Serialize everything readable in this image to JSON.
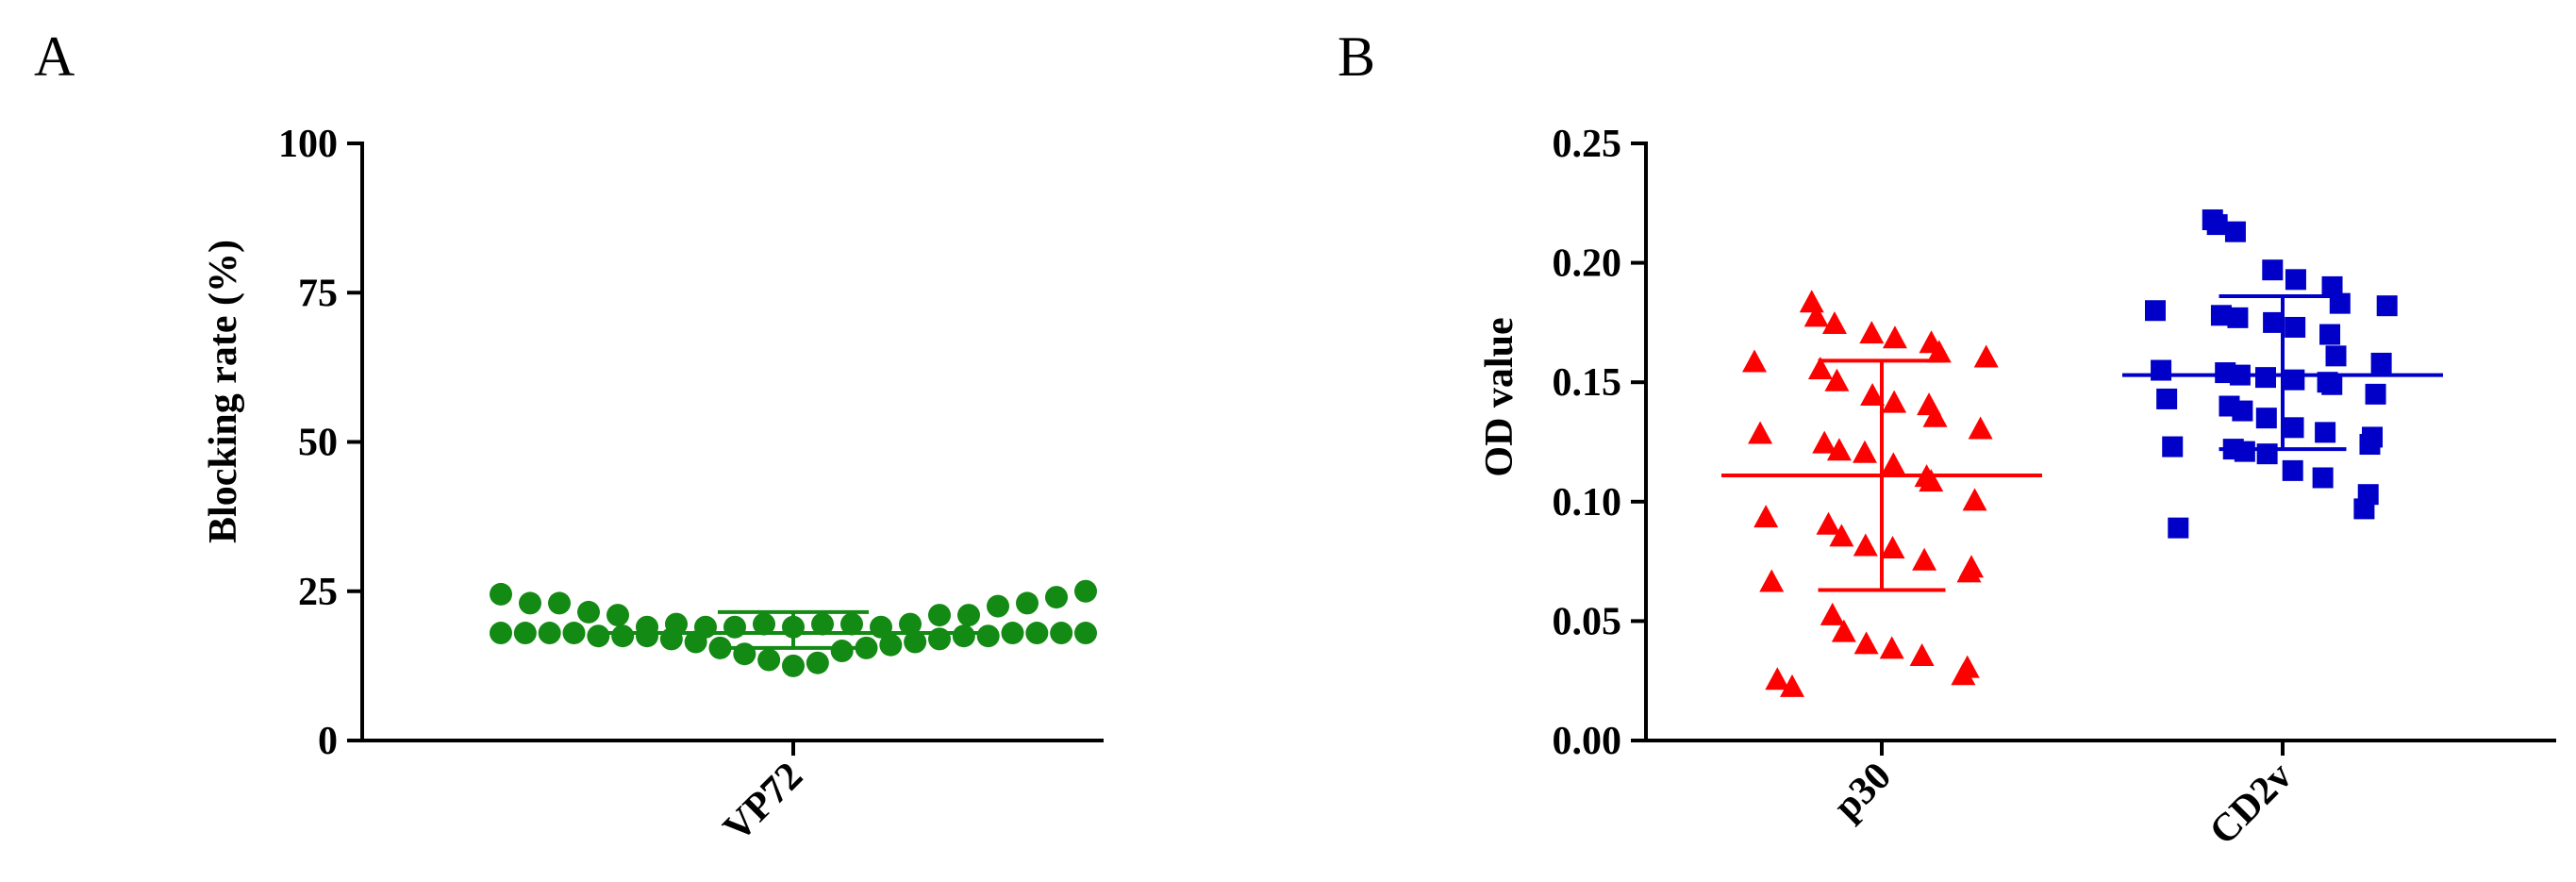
{
  "chart_data": [
    {
      "panel_label": "A",
      "type": "scatter",
      "ylabel": "Blocking rate (%)",
      "ylim": [
        0,
        100
      ],
      "yticks": [
        "0",
        "25",
        "50",
        "75",
        "100"
      ],
      "categories": [
        "VP72"
      ],
      "marker": "circle",
      "color": "#138a13",
      "series": [
        {
          "category": "VP72",
          "points": [
            24.5,
            23.0,
            23.0,
            21.5,
            21.0,
            19.0,
            19.5,
            19.0,
            19.0,
            19.5,
            19.0,
            19.5,
            19.5,
            19.0,
            19.5,
            21.0,
            21.0,
            22.5,
            23.0,
            24.0,
            25.0,
            18.0,
            18.0,
            18.0,
            18.0,
            17.5,
            17.5,
            17.5,
            17.0,
            16.5,
            15.5,
            14.5,
            13.5,
            12.5,
            13.0,
            15.0,
            15.5,
            16.0,
            16.5,
            17.0,
            17.5,
            17.5,
            18.0,
            18.0,
            18.0,
            18.0
          ],
          "mean": 18.0,
          "sd_low": 15.5,
          "sd_high": 21.5
        }
      ]
    },
    {
      "panel_label": "B",
      "type": "scatter",
      "ylabel": "OD value",
      "ylim": [
        0,
        0.25
      ],
      "yticks": [
        "0.00",
        "0.05",
        "0.10",
        "0.15",
        "0.20",
        "0.25"
      ],
      "categories": [
        "p30",
        "CD2v"
      ],
      "series": [
        {
          "category": "p30",
          "marker": "triangle",
          "color": "#ff0000",
          "points": [
            0.183,
            0.177,
            0.174,
            0.17,
            0.168,
            0.166,
            0.162,
            0.16,
            0.158,
            0.155,
            0.15,
            0.144,
            0.141,
            0.14,
            0.135,
            0.13,
            0.128,
            0.124,
            0.121,
            0.12,
            0.115,
            0.11,
            0.108,
            0.1,
            0.093,
            0.09,
            0.085,
            0.081,
            0.08,
            0.075,
            0.072,
            0.07,
            0.066,
            0.052,
            0.045,
            0.04,
            0.038,
            0.035,
            0.03,
            0.027,
            0.025,
            0.022
          ],
          "mean": 0.111,
          "sd_low": 0.063,
          "sd_high": 0.159
        },
        {
          "category": "CD2v",
          "marker": "square",
          "color": "#0000c8",
          "points": [
            0.218,
            0.216,
            0.213,
            0.197,
            0.193,
            0.19,
            0.183,
            0.182,
            0.18,
            0.178,
            0.177,
            0.175,
            0.173,
            0.17,
            0.161,
            0.158,
            0.155,
            0.154,
            0.153,
            0.152,
            0.151,
            0.15,
            0.149,
            0.145,
            0.143,
            0.14,
            0.138,
            0.135,
            0.131,
            0.129,
            0.127,
            0.124,
            0.123,
            0.122,
            0.121,
            0.12,
            0.113,
            0.11,
            0.103,
            0.097,
            0.089
          ],
          "mean": 0.153,
          "sd_low": 0.122,
          "sd_high": 0.186
        }
      ]
    }
  ]
}
